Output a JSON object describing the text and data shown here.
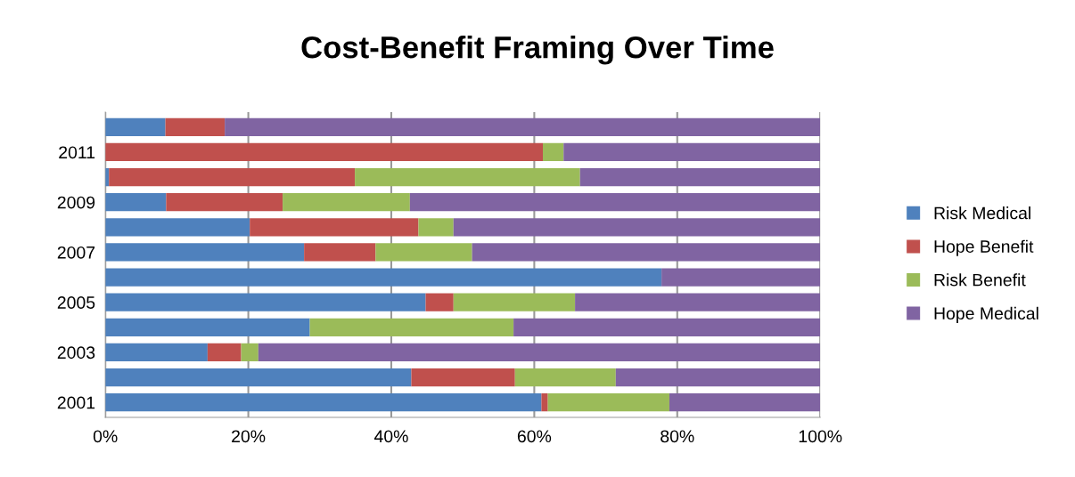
{
  "chart_data": {
    "type": "bar",
    "orientation": "horizontal",
    "stacked": true,
    "title": "Cost-Benefit Framing Over Time",
    "categories": [
      null,
      "2011",
      null,
      "2009",
      null,
      "2007",
      null,
      "2005",
      null,
      "2003",
      null,
      "2001"
    ],
    "series": [
      {
        "name": "Risk Medical",
        "color": "#4f81bd",
        "values": [
          8.4,
          0,
          0.5,
          8.5,
          20.2,
          27.8,
          77.8,
          44.8,
          28.6,
          14.3,
          42.8,
          61.0
        ]
      },
      {
        "name": "Hope Benefit",
        "color": "#c0504d",
        "values": [
          8.3,
          61.2,
          34.4,
          16.3,
          23.6,
          10.0,
          0,
          3.9,
          0,
          4.7,
          14.5,
          0.9
        ]
      },
      {
        "name": "Risk Benefit",
        "color": "#9bbb59",
        "values": [
          0,
          2.9,
          31.5,
          17.8,
          4.9,
          13.5,
          0,
          17.0,
          28.5,
          2.4,
          14.1,
          17.0
        ]
      },
      {
        "name": "Hope Medical",
        "color": "#8064a2",
        "values": [
          83.3,
          35.9,
          33.6,
          57.4,
          51.3,
          48.7,
          22.2,
          34.3,
          42.9,
          78.6,
          28.6,
          21.1
        ]
      }
    ],
    "xlim": [
      0,
      100
    ],
    "xticks": [
      {
        "value": 0,
        "label": "0%"
      },
      {
        "value": 20,
        "label": "20%"
      },
      {
        "value": 40,
        "label": "40%"
      },
      {
        "value": 60,
        "label": "60%"
      },
      {
        "value": 80,
        "label": "80%"
      },
      {
        "value": 100,
        "label": "100%"
      }
    ],
    "grid": "x",
    "legend": "right"
  }
}
